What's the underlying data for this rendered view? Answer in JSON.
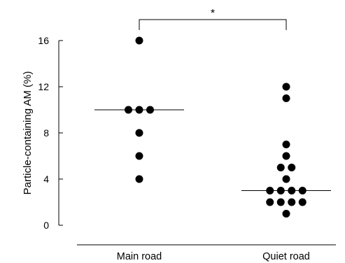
{
  "chart_data": {
    "type": "scatter",
    "title": "",
    "xlabel": "",
    "ylabel": "Particle-containing AM (%)",
    "ylim": [
      0,
      16
    ],
    "yticks": [
      0,
      4,
      8,
      12,
      16
    ],
    "categories": [
      "Main road",
      "Quiet road"
    ],
    "groups": [
      {
        "category": "Main road",
        "values": [
          16,
          10,
          10,
          10,
          8,
          6,
          4
        ],
        "median": 10
      },
      {
        "category": "Quiet road",
        "values": [
          12,
          11,
          7,
          6,
          5,
          5,
          4,
          3,
          3,
          3,
          3,
          2,
          2,
          2,
          2,
          1
        ],
        "median": 3
      }
    ],
    "significance": {
      "label": "*",
      "between": [
        "Main road",
        "Quiet road"
      ]
    },
    "grid": false,
    "legend": "none"
  }
}
